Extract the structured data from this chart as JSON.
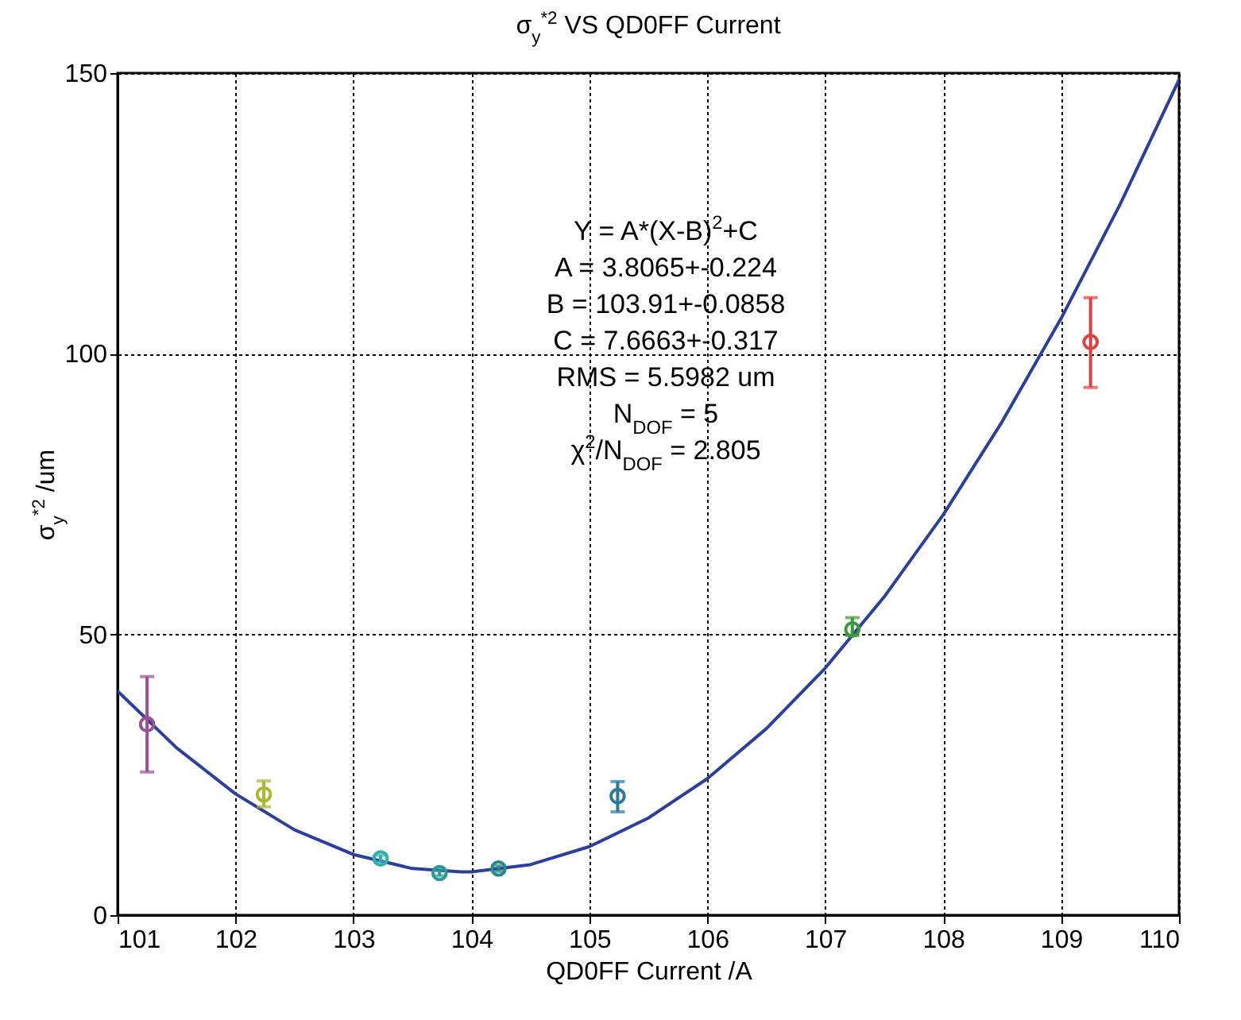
{
  "chart_data": {
    "type": "scatter",
    "title": "σ$_{y}$$^{*2}$ VS QD0FF Current",
    "xlabel": "QD0FF Current /A",
    "ylabel": "σ$_{y}$$^{*2}$ /um",
    "xlim": [
      101,
      110
    ],
    "xticks": [
      101,
      102,
      103,
      104,
      105,
      106,
      107,
      108,
      109,
      110
    ],
    "ylim": [
      0,
      150
    ],
    "yticks": [
      0,
      50,
      100,
      150
    ],
    "grid": true,
    "annotations": [
      "Y = A*(X-B)$^{2}$+C",
      "A =  3.8065+-0.224",
      "B =  103.91+-0.0858",
      "C =  7.6663+-0.317",
      "RMS =  5.5982 um",
      "N$_{DOF}$ = 5",
      "χ$^{2}$/N$_{DOF}$ = 2.805"
    ],
    "series": [
      {
        "type": "line",
        "color": "#2b3f9e",
        "line_style": "solid",
        "x": [
          101,
          101.5,
          102,
          102.5,
          103,
          103.5,
          103.91,
          104,
          104.5,
          105,
          105.5,
          106,
          106.5,
          107,
          107.5,
          108,
          108.5,
          109,
          109.5,
          110
        ],
        "values": [
          39.9,
          29.8,
          21.6,
          15.2,
          10.8,
          8.3,
          7.7,
          7.7,
          9.0,
          12.2,
          17.3,
          24.3,
          33.2,
          44.0,
          56.7,
          71.3,
          87.9,
          106.3,
          126.6,
          148.8
        ]
      },
      {
        "marker": "circle",
        "colors": [
          "#9b4f96",
          "#a8b830",
          "#2fb0b0",
          "#2a9a9a",
          "#2a8a8a",
          "#2a7a9a",
          "#3a9a3a",
          "#e04040"
        ],
        "x": [
          101.25,
          102.24,
          103.23,
          103.73,
          104.23,
          105.24,
          107.23,
          109.25
        ],
        "values": [
          34,
          21.5,
          10.1,
          7.5,
          8.3,
          21.2,
          50.9,
          102.1
        ],
        "errors": [
          [
            25.5,
            42.5
          ],
          [
            19.3,
            23.9
          ],
          [
            9.5,
            10.7
          ],
          [
            7,
            8
          ],
          [
            7.8,
            8.8
          ],
          [
            18.4,
            23.8
          ],
          [
            49.8,
            53
          ],
          [
            94,
            110
          ]
        ]
      }
    ]
  }
}
